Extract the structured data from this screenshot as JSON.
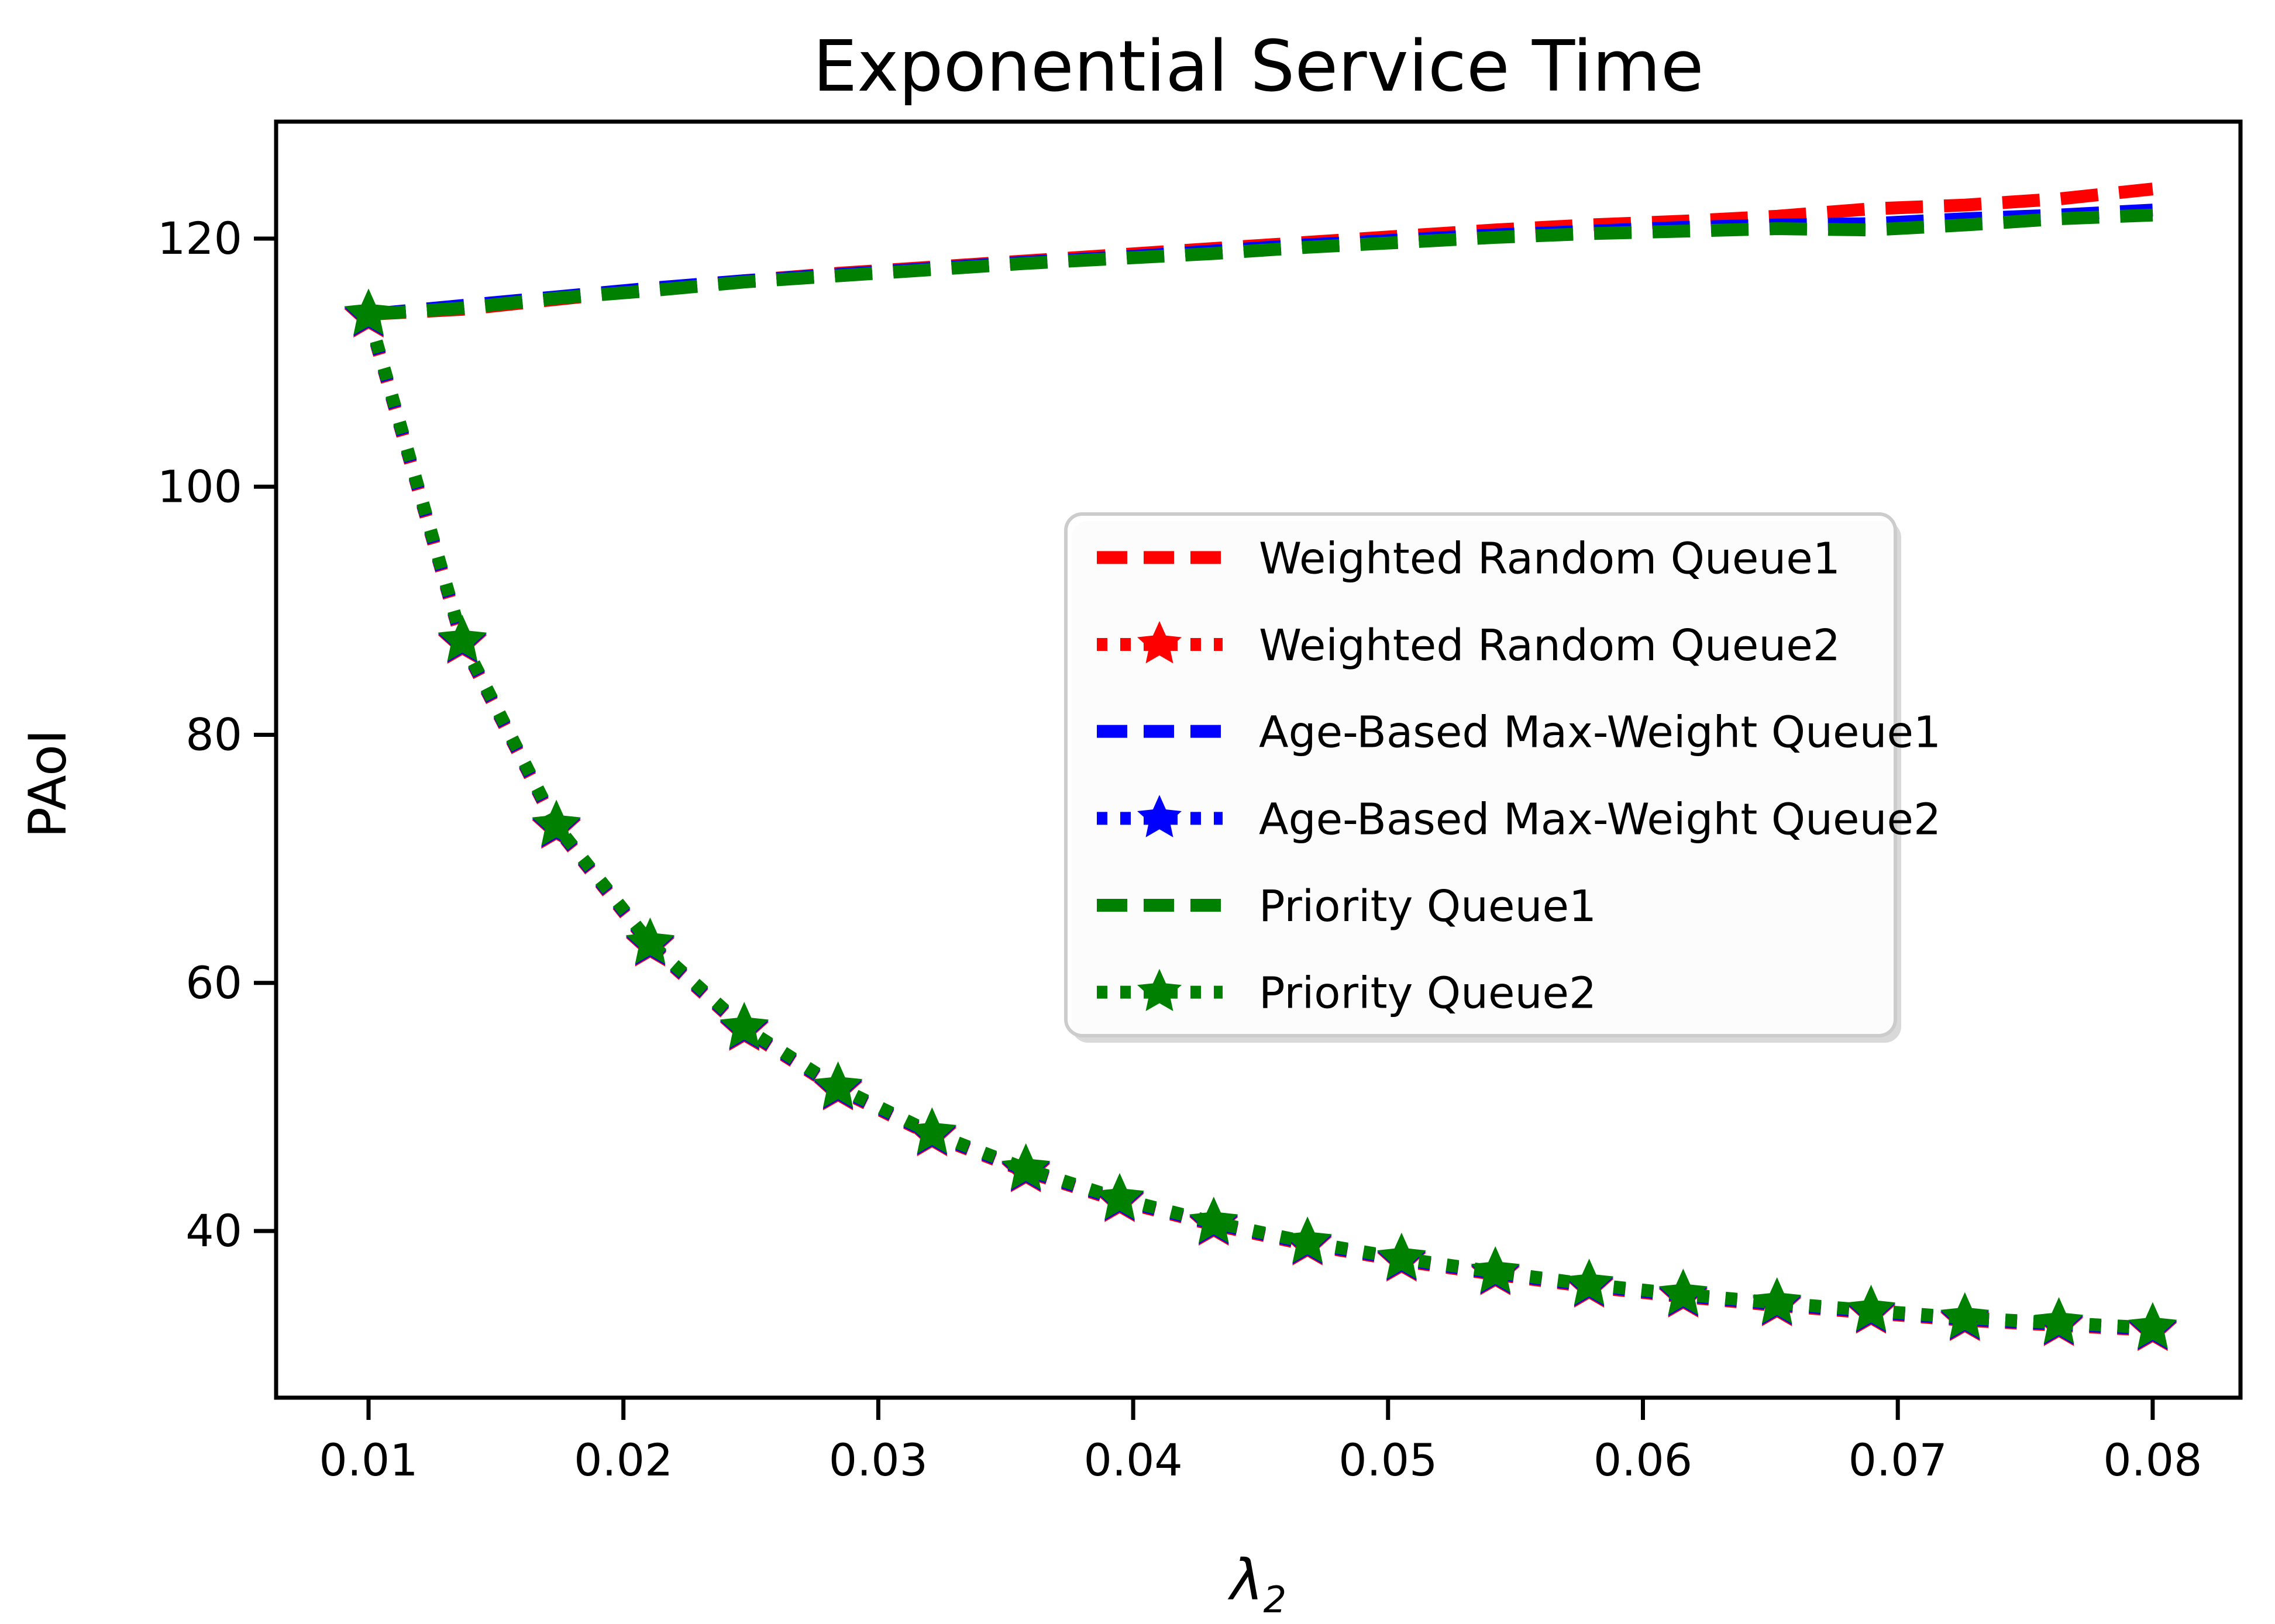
{
  "title": "Exponential Service Time",
  "axes": {
    "ylabel": "PAoI",
    "xlabel_symbol": "λ",
    "xlabel_subscript": "2",
    "x_tick_labels": [
      "0.01",
      "0.02",
      "0.03",
      "0.04",
      "0.05",
      "0.06",
      "0.07",
      "0.08"
    ],
    "x_tick_values": [
      0.01,
      0.02,
      0.03,
      0.04,
      0.05,
      0.06,
      0.07,
      0.08
    ],
    "y_tick_labels": [
      "40",
      "60",
      "80",
      "100",
      "120"
    ],
    "y_tick_values": [
      40,
      60,
      80,
      100,
      120
    ]
  },
  "colors": {
    "red": "#ff0000",
    "blue": "#0000ff",
    "green": "#008000",
    "axis": "#000000",
    "legend_border": "#cccccc",
    "background": "#ffffff"
  },
  "legend": {
    "position": "center right",
    "entries": [
      {
        "label": "Weighted Random Queue1",
        "color": "#ff0000",
        "style": "dashed"
      },
      {
        "label": "Weighted Random Queue2",
        "color": "#ff0000",
        "style": "dotted-star"
      },
      {
        "label": "Age-Based Max-Weight Queue1",
        "color": "#0000ff",
        "style": "dashed"
      },
      {
        "label": "Age-Based Max-Weight Queue2",
        "color": "#0000ff",
        "style": "dotted-star"
      },
      {
        "label": "Priority Queue1",
        "color": "#008000",
        "style": "dashed"
      },
      {
        "label": "Priority Queue2",
        "color": "#008000",
        "style": "dotted-star"
      }
    ]
  },
  "chart_data": {
    "type": "line",
    "title": "Exponential Service Time",
    "xlabel": "λ₂",
    "ylabel": "PAoI",
    "grid": false,
    "legend_position": "center right",
    "xlim": [
      0.00637,
      0.0834
    ],
    "ylim": [
      26.6,
      129.4
    ],
    "x": [
      0.01,
      0.01368,
      0.01737,
      0.02105,
      0.02474,
      0.02842,
      0.03211,
      0.03579,
      0.03947,
      0.04316,
      0.04684,
      0.05053,
      0.05421,
      0.05789,
      0.06158,
      0.06526,
      0.06895,
      0.07263,
      0.07632,
      0.08
    ],
    "series": [
      {
        "name": "weighted-random-queue1",
        "label": "Weighted Random Queue1",
        "color": "#ff0000",
        "linestyle": "dashed",
        "marker": "none",
        "values": [
          113.9,
          114.3,
          115.1,
          115.9,
          116.6,
          117.2,
          117.7,
          118.2,
          118.7,
          119.2,
          119.7,
          120.2,
          120.7,
          121.1,
          121.4,
          121.8,
          122.4,
          122.7,
          123.2,
          124.0
        ]
      },
      {
        "name": "weighted-random-queue2",
        "label": "Weighted Random Queue2",
        "color": "#ff0000",
        "linestyle": "dotted",
        "marker": "star",
        "values": [
          113.7,
          87.4,
          72.5,
          63.0,
          56.2,
          51.4,
          47.7,
          44.8,
          42.4,
          40.5,
          38.9,
          37.6,
          36.5,
          35.5,
          34.7,
          34.0,
          33.4,
          32.8,
          32.4,
          32.0
        ]
      },
      {
        "name": "age-based-max-weight-queue1",
        "label": "Age-Based Max-Weight Queue1",
        "color": "#0000ff",
        "linestyle": "dashed",
        "marker": "none",
        "values": [
          113.9,
          114.6,
          115.3,
          116.0,
          116.6,
          117.1,
          117.6,
          118.1,
          118.5,
          119.0,
          119.5,
          119.9,
          120.3,
          120.6,
          120.9,
          121.1,
          121.2,
          121.6,
          121.9,
          122.3
        ]
      },
      {
        "name": "age-based-max-weight-queue2",
        "label": "Age-Based Max-Weight Queue2",
        "color": "#0000ff",
        "linestyle": "dotted",
        "marker": "star",
        "values": [
          113.8,
          87.5,
          72.6,
          63.1,
          56.3,
          51.5,
          47.8,
          44.9,
          42.5,
          40.6,
          39.0,
          37.7,
          36.6,
          35.6,
          34.8,
          34.1,
          33.5,
          32.9,
          32.5,
          32.1
        ]
      },
      {
        "name": "priority-queue1",
        "label": "Priority Queue1",
        "color": "#008000",
        "linestyle": "dashed",
        "marker": "none",
        "values": [
          113.9,
          114.4,
          115.2,
          115.8,
          116.5,
          117.0,
          117.5,
          118.0,
          118.4,
          118.8,
          119.3,
          119.7,
          120.1,
          120.4,
          120.6,
          120.8,
          120.7,
          121.1,
          121.6,
          121.9
        ]
      },
      {
        "name": "priority-queue2",
        "label": "Priority Queue2",
        "color": "#008000",
        "linestyle": "dotted",
        "marker": "star",
        "values": [
          113.9,
          87.6,
          72.7,
          63.2,
          56.4,
          51.6,
          47.9,
          45.0,
          42.6,
          40.7,
          39.1,
          37.8,
          36.7,
          35.7,
          34.9,
          34.2,
          33.6,
          33.0,
          32.6,
          32.2
        ]
      }
    ]
  }
}
